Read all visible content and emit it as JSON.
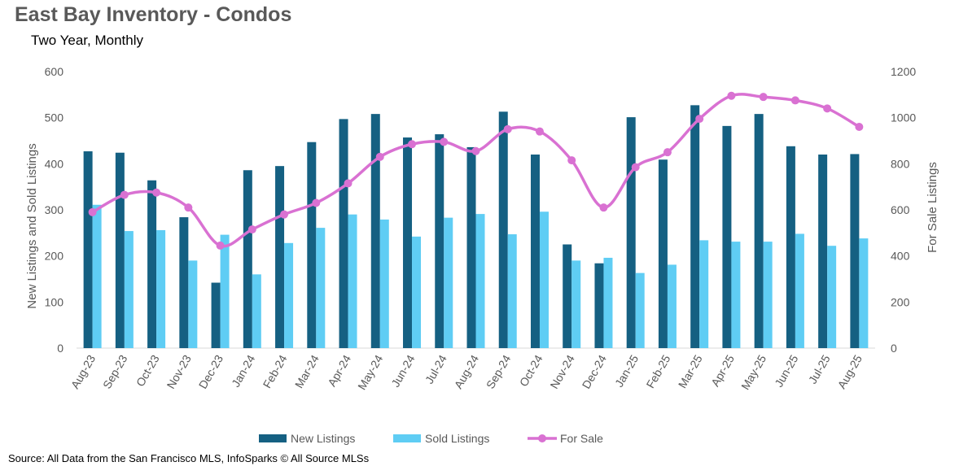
{
  "page": {
    "title": "East Bay Inventory - Condos",
    "subtitle": "Two Year, Monthly",
    "source": "Source: All Data from the San Francisco MLS, InfoSparks © All Source MLSs"
  },
  "chart_data": {
    "type": "bar",
    "title": "East Bay Inventory - Condos",
    "subtitle": "Two Year, Monthly",
    "categories": [
      "Aug-23",
      "Sep-23",
      "Oct-23",
      "Nov-23",
      "Dec-23",
      "Jan-24",
      "Feb-24",
      "Mar-24",
      "Apr-24",
      "May-24",
      "Jun-24",
      "Jul-24",
      "Aug-24",
      "Sep-24",
      "Oct-24",
      "Nov-24",
      "Dec-24",
      "Jan-25",
      "Feb-25",
      "Mar-25",
      "Apr-25",
      "May-25",
      "Jun-25",
      "Jul-25",
      "Aug-25"
    ],
    "series": [
      {
        "name": "New Listings",
        "type": "bar",
        "axis": "left",
        "color": "#156082",
        "values": [
          427,
          424,
          364,
          284,
          142,
          386,
          395,
          447,
          497,
          508,
          457,
          464,
          436,
          513,
          420,
          225,
          184,
          501,
          409,
          527,
          482,
          508,
          438,
          420,
          421
        ]
      },
      {
        "name": "Sold Listings",
        "type": "bar",
        "axis": "left",
        "color": "#5fcdf4",
        "values": [
          311,
          254,
          256,
          190,
          246,
          160,
          228,
          261,
          290,
          279,
          242,
          283,
          291,
          247,
          296,
          190,
          196,
          163,
          181,
          234,
          231,
          231,
          248,
          222,
          238
        ]
      },
      {
        "name": "For Sale",
        "type": "line",
        "axis": "right",
        "color": "#d971d2",
        "values": [
          590,
          665,
          675,
          610,
          445,
          515,
          580,
          630,
          715,
          830,
          885,
          895,
          855,
          950,
          940,
          815,
          610,
          785,
          850,
          995,
          1095,
          1090,
          1075,
          1040,
          960
        ]
      }
    ],
    "y_left": {
      "label": "New Listings and Sold Listings",
      "min": 0,
      "max": 600,
      "ticks": [
        0,
        100,
        200,
        300,
        400,
        500,
        600
      ]
    },
    "y_right": {
      "label": "For Sale Listings",
      "min": 0,
      "max": 1200,
      "ticks": [
        0,
        200,
        400,
        600,
        800,
        1000,
        1200
      ]
    },
    "grid": false,
    "legend_position": "bottom"
  }
}
